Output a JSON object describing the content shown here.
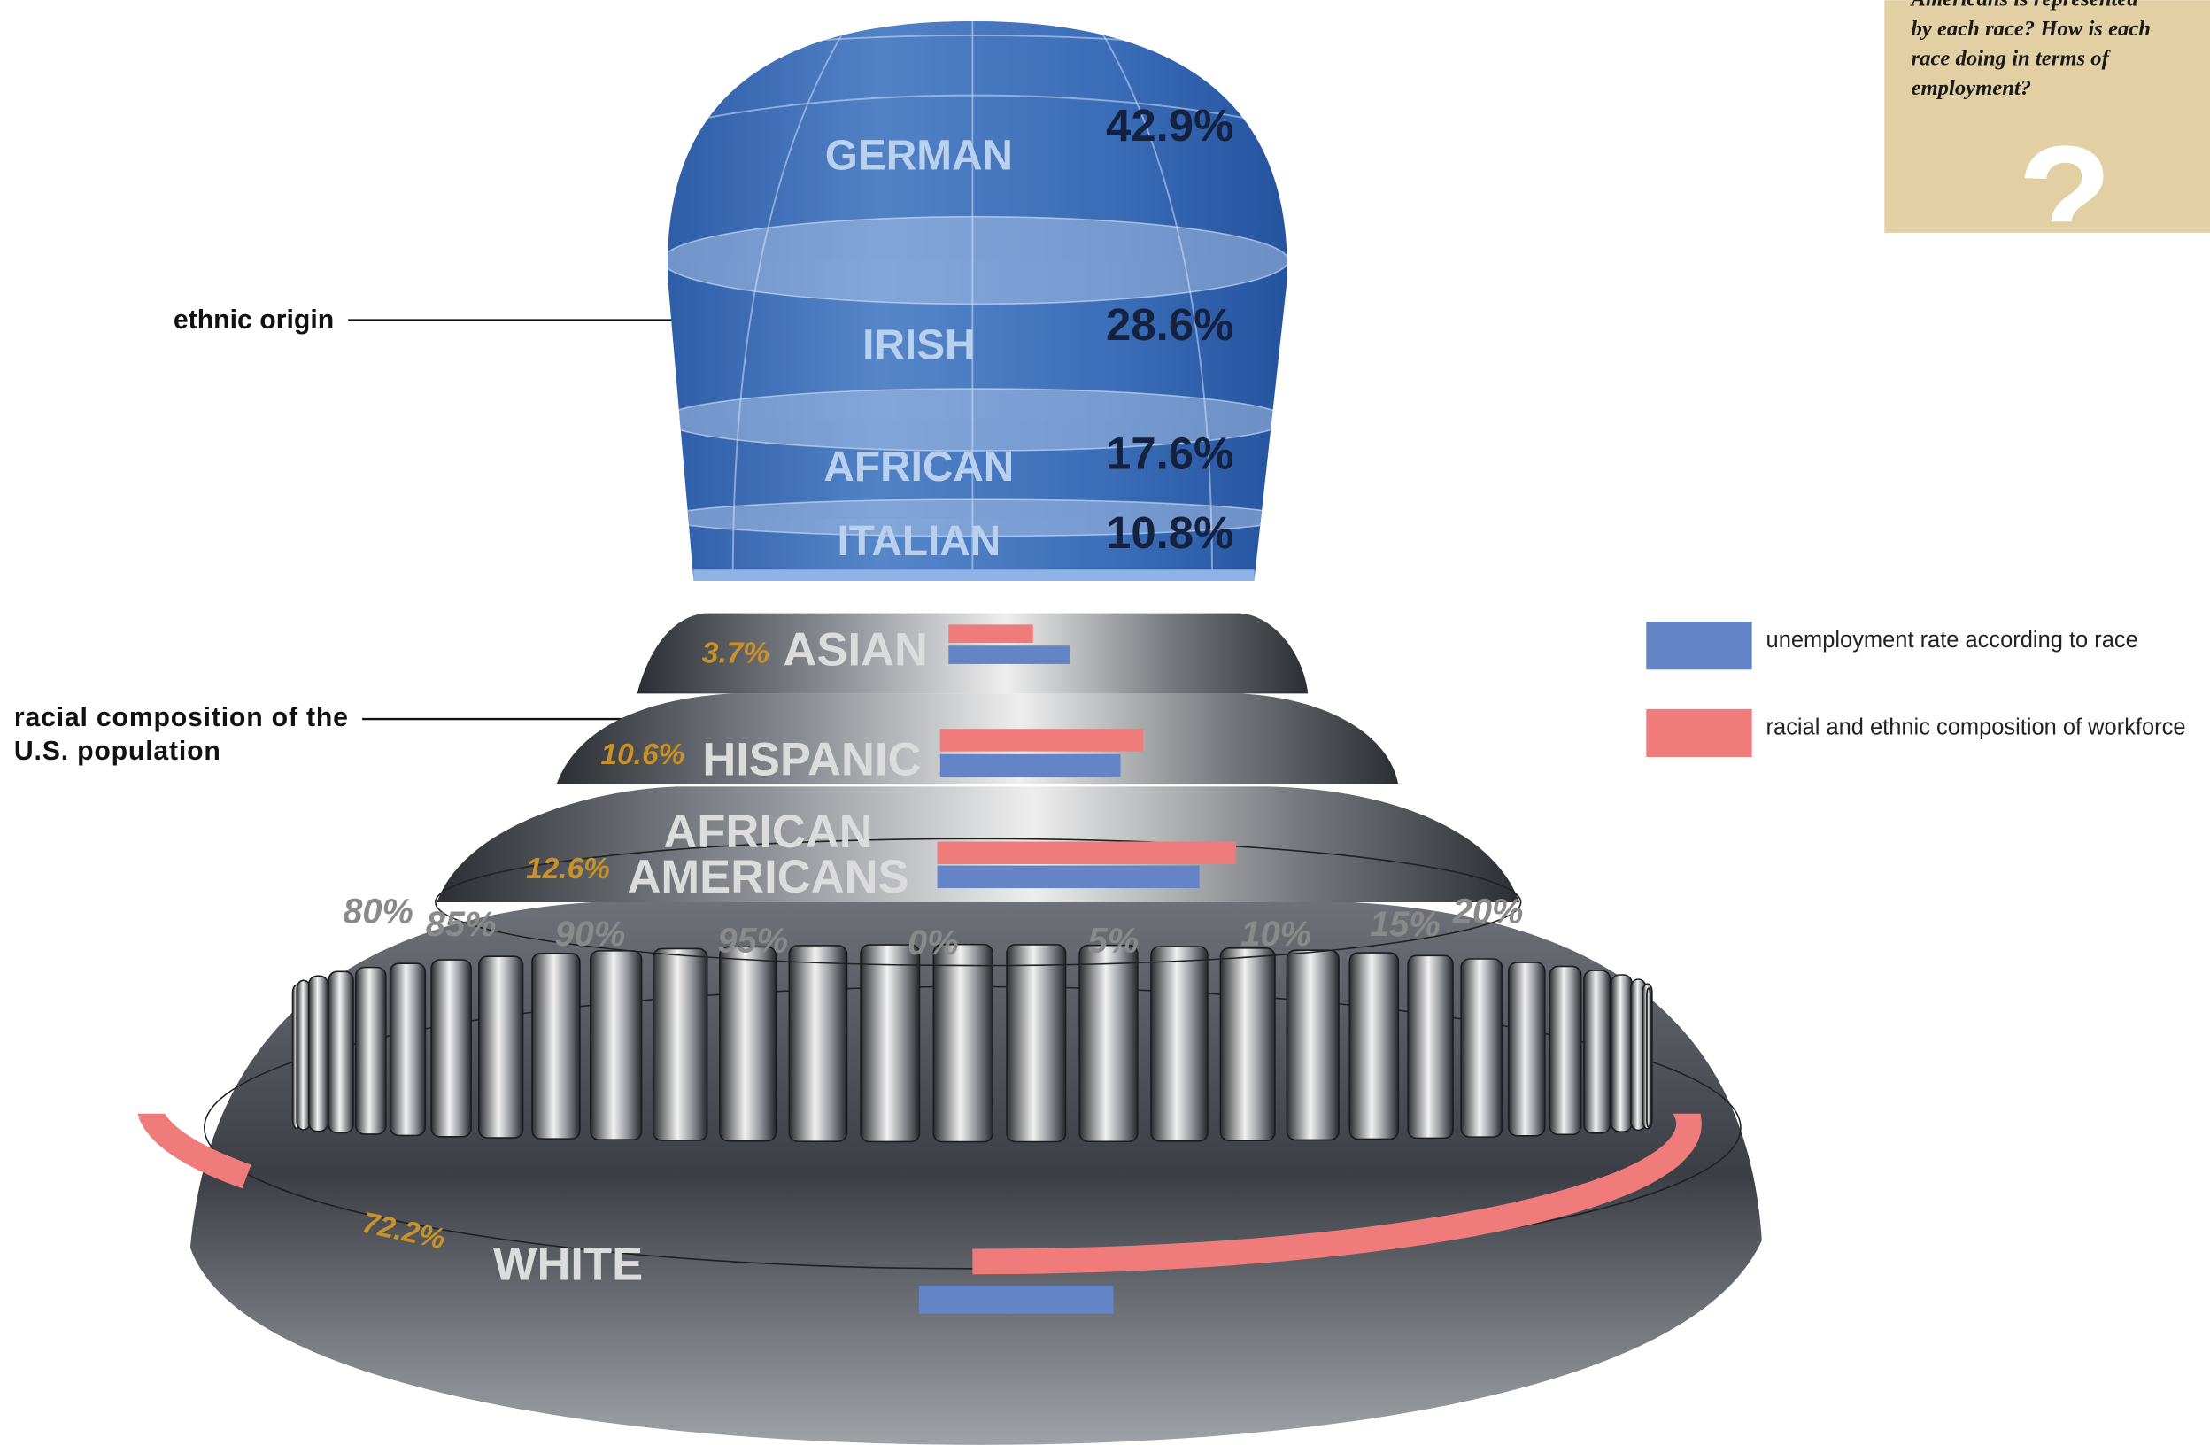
{
  "question": {
    "lines": [
      "Americans is represented",
      "by each race? How is each",
      "race doing in terms of",
      "employment?"
    ],
    "mark": "?"
  },
  "chart_data": [
    {
      "type": "dome",
      "title": "ethnic origin",
      "categories": [
        "GERMAN",
        "IRISH",
        "AFRICAN",
        "ITALIAN"
      ],
      "values": [
        42.9,
        28.6,
        17.6,
        10.8
      ],
      "value_labels": [
        "42.9%",
        "28.6%",
        "17.6%",
        "10.8%"
      ],
      "color": "#3f72bd"
    },
    {
      "type": "bar",
      "title": "racial composition of the U.S. population",
      "categories": [
        "ASIAN",
        "HISPANIC",
        "AFRICAN AMERICANS",
        "WHITE"
      ],
      "values": [
        3.7,
        10.6,
        12.6,
        72.2
      ],
      "value_labels": [
        "3.7%",
        "10.6%",
        "12.6%",
        "72.2%"
      ],
      "series": [
        {
          "name": "unemployment rate according to race",
          "color": "#6484c8",
          "values": [
            4.3,
            6.4,
            9.3,
            6.9
          ]
        },
        {
          "name": "racial and ethnic composition of workforce",
          "color": "#f07b7b",
          "values": [
            3.0,
            7.2,
            10.6,
            82
          ]
        }
      ],
      "xticks": [
        {
          "value": 80,
          "label": "80%"
        },
        {
          "value": 85,
          "label": "85%"
        },
        {
          "value": 90,
          "label": "90%"
        },
        {
          "value": 95,
          "label": "95%"
        },
        {
          "value": 0,
          "label": "0%"
        },
        {
          "value": 5,
          "label": "5%"
        },
        {
          "value": 10,
          "label": "10%"
        },
        {
          "value": 15,
          "label": "15%"
        },
        {
          "value": 20,
          "label": "20%"
        }
      ],
      "legend": "right"
    }
  ]
}
